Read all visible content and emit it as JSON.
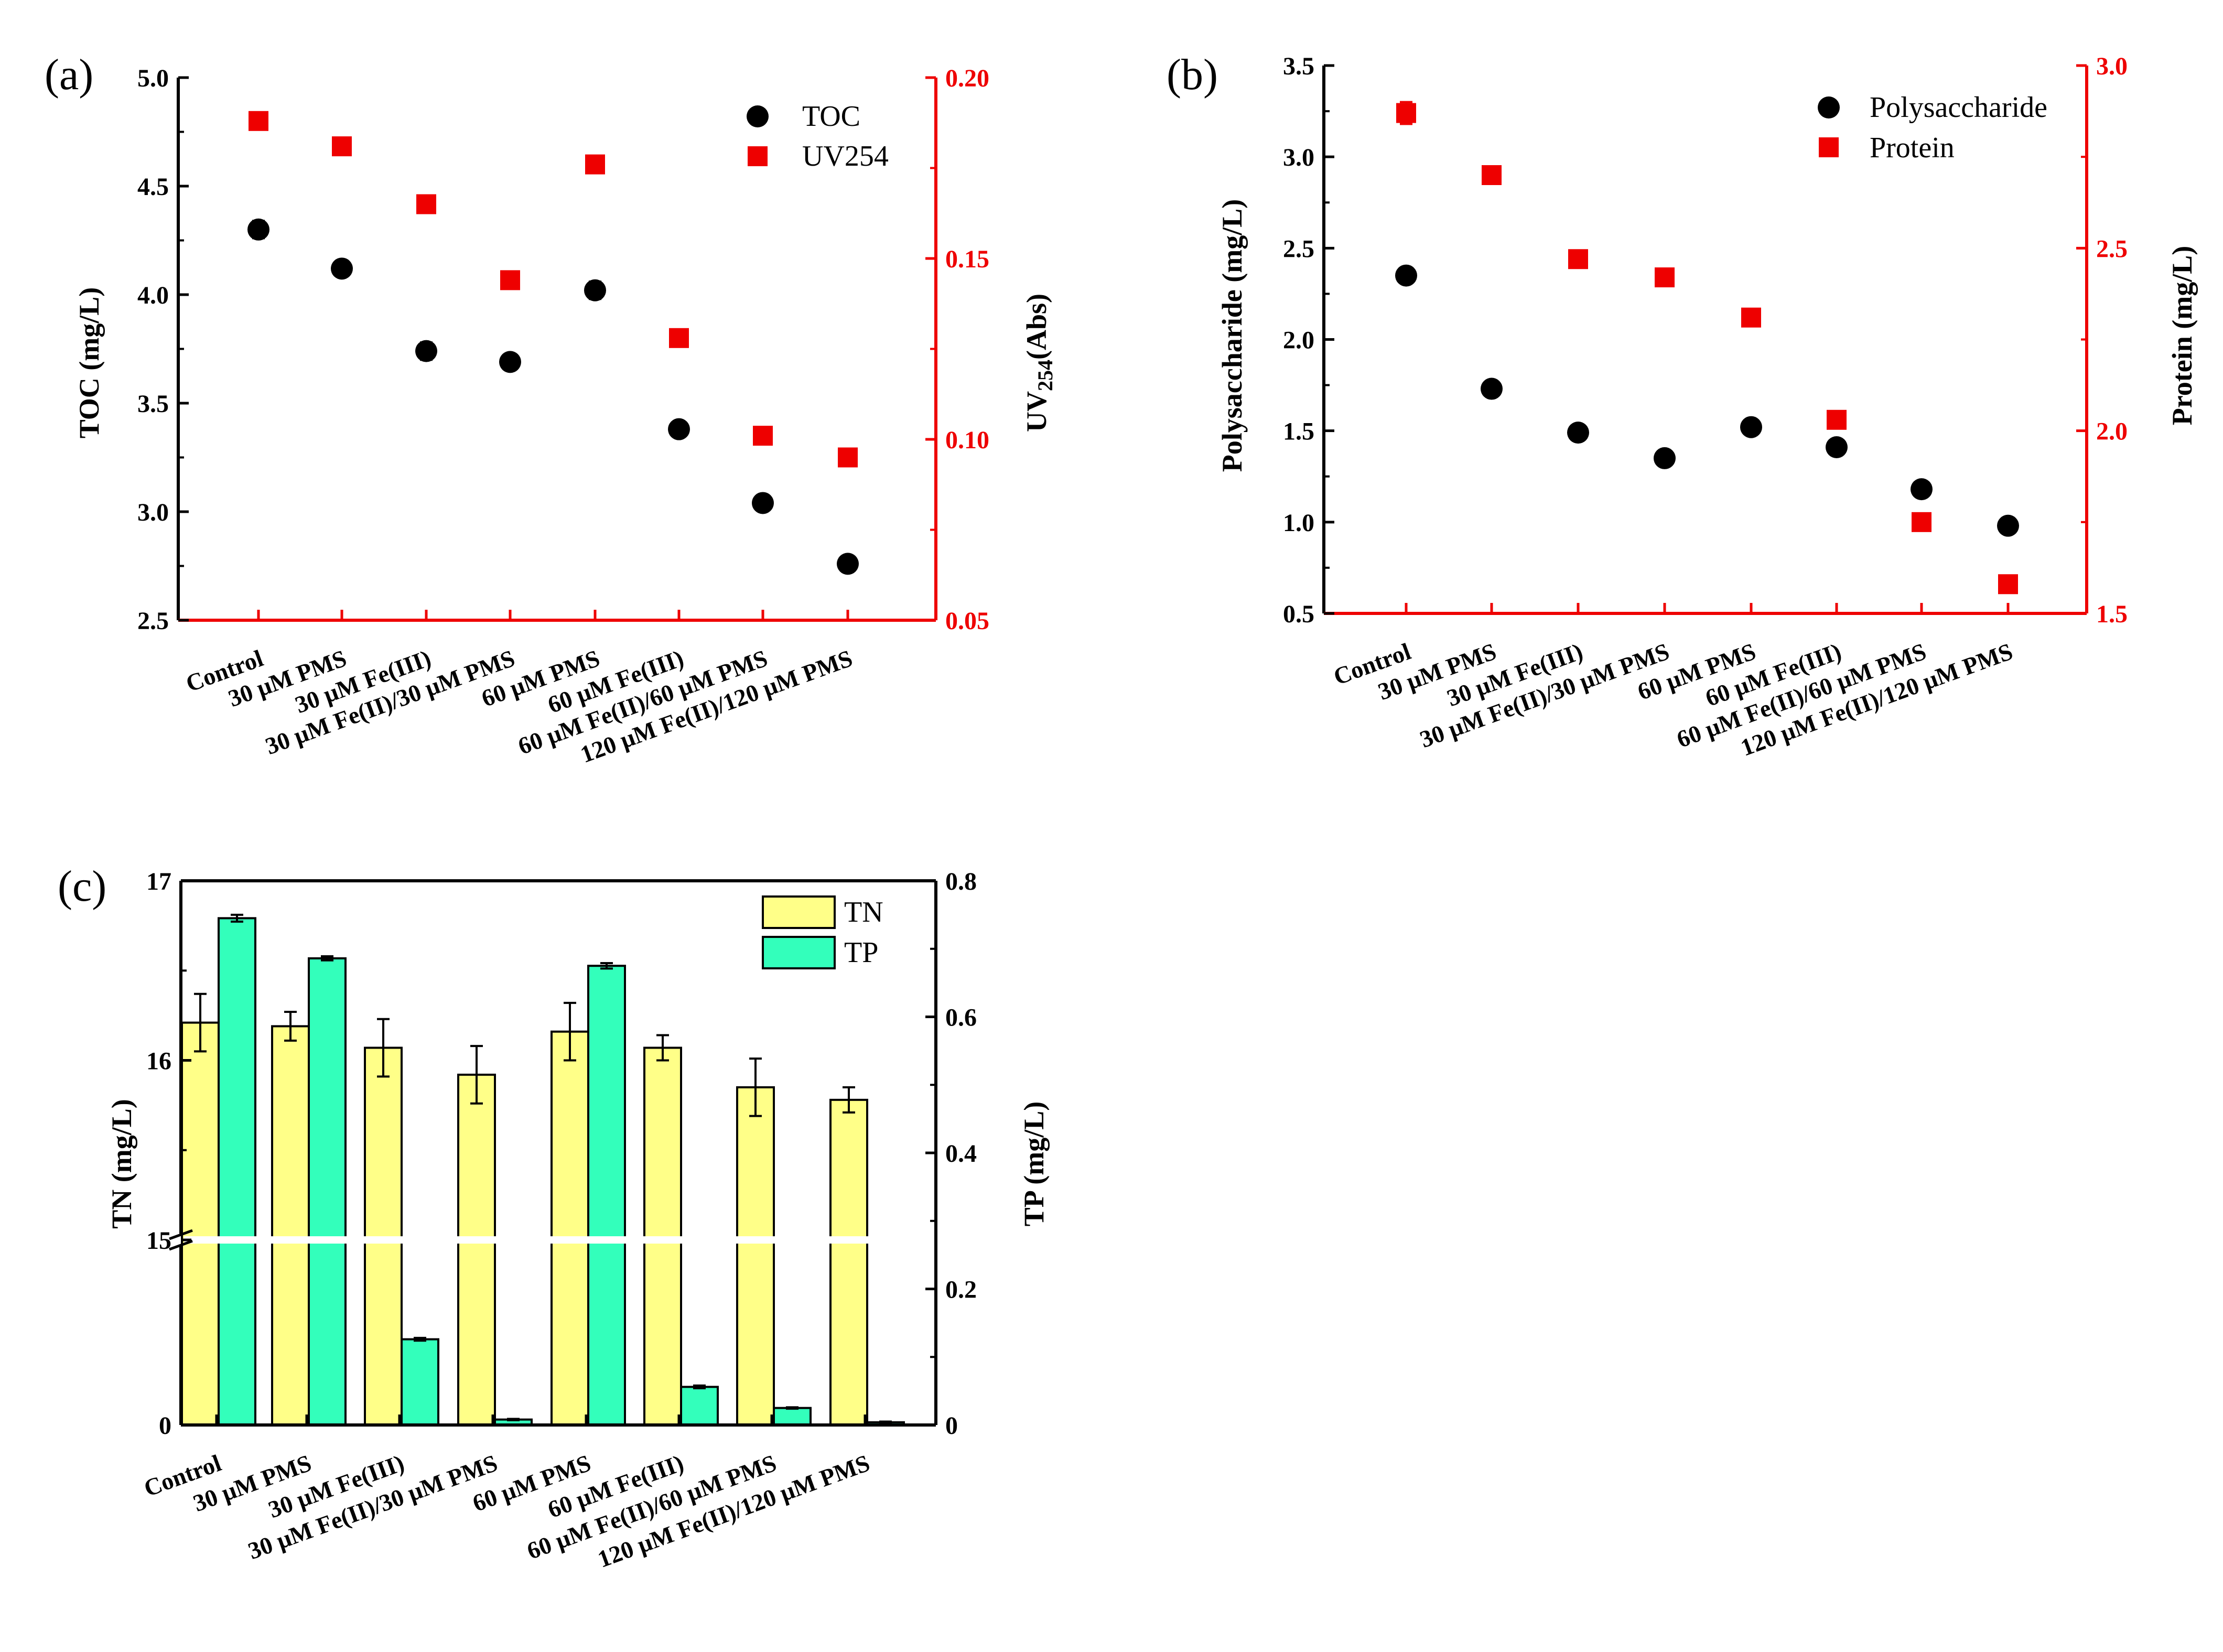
{
  "categories": [
    "Control",
    "30 μM PMS",
    "30 μM Fe(III)",
    "30 μM Fe(II)/30 μM PMS",
    "60 μM PMS",
    "60 μM Fe(III)",
    "60 μM Fe(II)/60 μM PMS",
    "120 μM Fe(II)/120 μM PMS"
  ],
  "colors": {
    "black": "#000000",
    "red": "#ee0000",
    "tn": "#ffff88",
    "tp": "#33ffbb"
  },
  "panel_a": {
    "label": "(a)",
    "left_axis_label": "TOC (mg/L)",
    "right_axis_label_main": "UV",
    "right_axis_label_sub": "254",
    "right_axis_label_tail": "(Abs)",
    "legend": [
      "TOC",
      "UV254"
    ],
    "left_ticks": [
      "2.5",
      "3.0",
      "3.5",
      "4.0",
      "4.5",
      "5.0"
    ],
    "right_ticks": [
      "0.05",
      "0.10",
      "0.15",
      "0.20"
    ]
  },
  "panel_b": {
    "label": "(b)",
    "left_axis_label": "Polysaccharide (mg/L)",
    "right_axis_label": "Protein (mg/L)",
    "legend": [
      "Polysaccharide",
      "Protein"
    ],
    "left_ticks": [
      "0.5",
      "1.0",
      "1.5",
      "2.0",
      "2.5",
      "3.0",
      "3.5"
    ],
    "right_ticks": [
      "1.5",
      "2.0",
      "2.5",
      "3.0"
    ]
  },
  "panel_c": {
    "label": "(c)",
    "left_axis_label": "TN (mg/L)",
    "right_axis_label": "TP (mg/L)",
    "legend": [
      "TN",
      "TP"
    ],
    "left_ticks": [
      "0",
      "15",
      "16",
      "17"
    ],
    "right_ticks": [
      "0",
      "0.2",
      "0.4",
      "0.6",
      "0.8"
    ]
  },
  "chart_data": [
    {
      "type": "scatter",
      "title": "(a)",
      "xlabel": "",
      "ylabel": "TOC (mg/L)",
      "ylim": [
        2.5,
        5.0
      ],
      "y2label": "UV254(Abs)",
      "y2lim": [
        0.05,
        0.2
      ],
      "categories": [
        "Control",
        "30 μM PMS",
        "30 μM Fe(III)",
        "30 μM Fe(II)/30 μM PMS",
        "60 μM PMS",
        "60 μM Fe(III)",
        "60 μM Fe(II)/60 μM PMS",
        "120 μM Fe(II)/120 μM PMS"
      ],
      "series": [
        {
          "name": "TOC",
          "axis": "left",
          "values": [
            4.3,
            4.12,
            3.74,
            3.69,
            4.02,
            3.38,
            3.04,
            2.76
          ],
          "errors": [
            0.04,
            0.01,
            0.04,
            0.01,
            0.04,
            0.01,
            0.01,
            0.01
          ]
        },
        {
          "name": "UV254",
          "axis": "right",
          "values": [
            0.188,
            0.181,
            0.165,
            0.144,
            0.176,
            0.128,
            0.101,
            0.095
          ],
          "errors": [
            0.001,
            0.001,
            0.001,
            0.001,
            0.001,
            0.001,
            0.001,
            0.001
          ]
        }
      ]
    },
    {
      "type": "scatter",
      "title": "(b)",
      "xlabel": "",
      "ylabel": "Polysaccharide (mg/L)",
      "ylim": [
        0.5,
        3.5
      ],
      "y2label": "Protein (mg/L)",
      "y2lim": [
        1.5,
        3.0
      ],
      "categories": [
        "Control",
        "30 μM PMS",
        "30 μM Fe(III)",
        "30 μM Fe(II)/30 μM PMS",
        "60 μM PMS",
        "60 μM Fe(III)",
        "60 μM Fe(II)/60 μM PMS",
        "120 μM Fe(II)/120 μM PMS"
      ],
      "series": [
        {
          "name": "Polysaccharide",
          "axis": "left",
          "values": [
            2.35,
            1.73,
            1.49,
            1.35,
            1.52,
            1.41,
            1.18,
            0.98
          ],
          "errors": [
            0.02,
            0.01,
            0.01,
            0.01,
            0.01,
            0.01,
            0.01,
            0.01
          ]
        },
        {
          "name": "Protein",
          "axis": "right",
          "values": [
            2.87,
            2.7,
            2.47,
            2.42,
            2.31,
            2.03,
            1.75,
            1.58
          ],
          "errors": [
            0.03,
            0.01,
            0.02,
            0.02,
            0.02,
            0.01,
            0.01,
            0.01
          ]
        }
      ]
    },
    {
      "type": "bar",
      "title": "(c)",
      "xlabel": "",
      "ylabel": "TN (mg/L)",
      "ylim": [
        0,
        17
      ],
      "y_axis_break": [
        15,
        15
      ],
      "y2label": "TP (mg/L)",
      "y2lim": [
        0,
        0.8
      ],
      "categories": [
        "Control",
        "30 μM PMS",
        "30 μM Fe(III)",
        "30 μM Fe(II)/30 μM PMS",
        "60 μM PMS",
        "60 μM Fe(III)",
        "60 μM Fe(II)/60 μM PMS",
        "120 μM Fe(II)/120 μM PMS"
      ],
      "series": [
        {
          "name": "TN",
          "axis": "left",
          "values": [
            16.21,
            16.19,
            16.07,
            15.92,
            16.16,
            16.07,
            15.85,
            15.78
          ],
          "errors": [
            0.16,
            0.08,
            0.16,
            0.16,
            0.16,
            0.07,
            0.16,
            0.07
          ]
        },
        {
          "name": "TP",
          "axis": "right",
          "values": [
            0.745,
            0.686,
            0.126,
            0.008,
            0.675,
            0.056,
            0.025,
            0.004
          ],
          "errors": [
            0.005,
            0.003,
            0.002,
            0.001,
            0.004,
            0.002,
            0.001,
            0.001
          ]
        }
      ]
    }
  ]
}
